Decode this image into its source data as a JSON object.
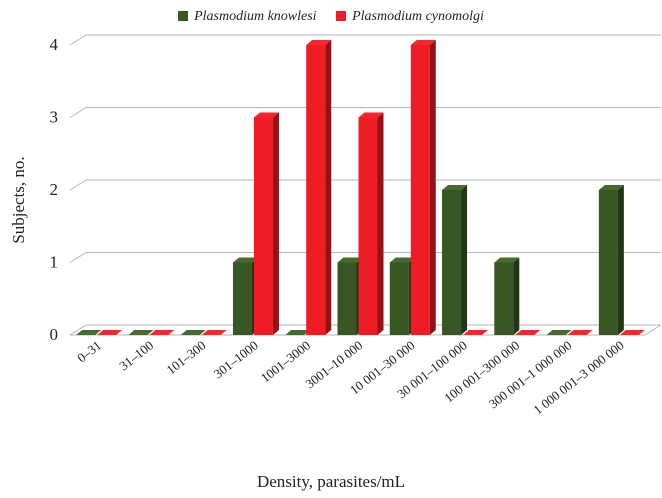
{
  "legend": {
    "series1": "Plasmodium knowlesi",
    "series2": "Plasmodium cynomolgi"
  },
  "chart_data": {
    "type": "bar",
    "categories": [
      "0–31",
      "31–100",
      "101–300",
      "301–1000",
      "1001–3000",
      "3001–10 000",
      "10 001–30 000",
      "30 001–100 000",
      "100 001–300 000",
      "300 001–1 000 000",
      "1 000 001–3 000 000"
    ],
    "series": [
      {
        "name": "Plasmodium knowlesi",
        "color": "#375623",
        "values": [
          0,
          0,
          0,
          1,
          0,
          1,
          1,
          2,
          1,
          0,
          2
        ]
      },
      {
        "name": "Plasmodium cynomolgi",
        "color": "#ee1c24",
        "values": [
          0,
          0,
          0,
          3,
          4,
          3,
          4,
          0,
          0,
          0,
          0
        ]
      }
    ],
    "xlabel": "Density, parasites/mL",
    "ylabel": "Subjects, no.",
    "yticks": [
      0,
      1,
      2,
      3,
      4
    ],
    "ylim": [
      0,
      4
    ],
    "grid": true,
    "legend_position": "top"
  }
}
